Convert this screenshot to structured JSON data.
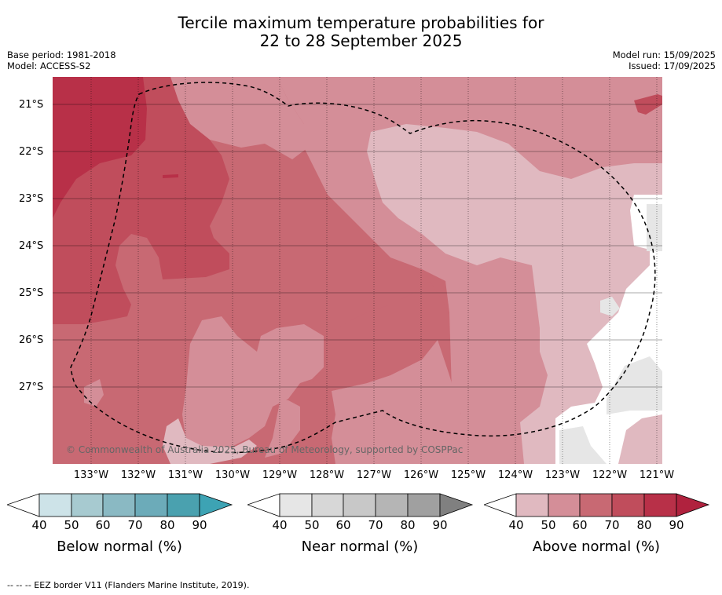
{
  "title": {
    "line1": "Tercile maximum temperature probabilities for",
    "line2": "22 to 28 September 2025"
  },
  "meta": {
    "base_period": "Base period: 1981-2018",
    "model": "Model: ACCESS-S2",
    "model_run": "Model run: 15/09/2025",
    "issued": "Issued: 17/09/2025"
  },
  "map": {
    "lat_labels": [
      "21°S",
      "22°S",
      "23°S",
      "24°S",
      "25°S",
      "26°S",
      "27°S"
    ],
    "lon_labels": [
      "133°W",
      "132°W",
      "131°W",
      "130°W",
      "129°W",
      "128°W",
      "127°W",
      "126°W",
      "125°W",
      "124°W",
      "123°W",
      "122°W",
      "121°W"
    ],
    "copyright": "© Commonwealth of Australia 2025, Bureau of Meteorology, supported by COSPPac",
    "colors": {
      "above_40": "#e0b9c0",
      "above_50": "#d48e98",
      "above_60": "#c86973",
      "above_70": "#c04d5c",
      "above_80": "#b83048",
      "near_40": "#e6e6e6",
      "no_signal": "#ffffff",
      "eez_border": "#000000"
    }
  },
  "colorbars": [
    {
      "title": "Below normal (%)",
      "ticks": [
        "40",
        "50",
        "60",
        "70",
        "80",
        "90"
      ],
      "colors": [
        "#cde3e8",
        "#a7cad0",
        "#8ab9c3",
        "#6cabb9",
        "#4aa1af",
        "#3da3b4"
      ]
    },
    {
      "title": "Near normal (%)",
      "ticks": [
        "40",
        "50",
        "60",
        "70",
        "80",
        "90"
      ],
      "colors": [
        "#e6e6e6",
        "#d7d7d7",
        "#c8c8c8",
        "#b5b5b5",
        "#a0a0a0",
        "#808080"
      ]
    },
    {
      "title": "Above normal (%)",
      "ticks": [
        "40",
        "50",
        "60",
        "70",
        "80",
        "90"
      ],
      "colors": [
        "#e0b9c0",
        "#d48e98",
        "#c86973",
        "#c04d5c",
        "#b83048",
        "#b0223e"
      ]
    }
  ],
  "footer": "--  --  -- EEZ border V11 (Flanders Marine Institute, 2019)."
}
